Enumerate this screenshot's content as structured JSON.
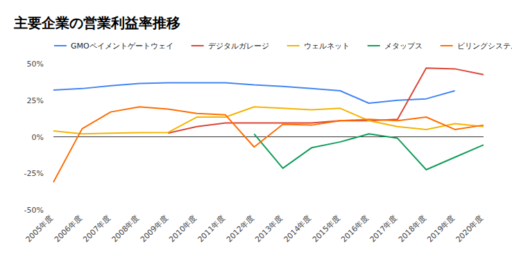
{
  "chart_data": {
    "type": "line",
    "title": "主要企業の営業利益率推移",
    "categories": [
      "2005年度",
      "2006年度",
      "2007年度",
      "2008年度",
      "2009年度",
      "2010年度",
      "2011年度",
      "2012年度",
      "2013年度",
      "2014年度",
      "2015年度",
      "2016年度",
      "2017年度",
      "2018年度",
      "2019年度",
      "2020年度"
    ],
    "series": [
      {
        "name": "GMOペイメントゲートウェイ",
        "color": "#4285F4",
        "values": [
          32,
          33,
          35,
          36.5,
          37,
          37,
          37,
          35.5,
          34.5,
          33,
          31.5,
          23,
          25,
          26,
          31.5,
          null
        ]
      },
      {
        "name": "デジタルガレージ",
        "color": "#DB4437",
        "values": [
          null,
          null,
          null,
          null,
          2.5,
          7,
          9.5,
          9.5,
          9.5,
          9.5,
          11,
          11,
          12,
          47,
          46.5,
          42.5
        ]
      },
      {
        "name": "ウェルネット",
        "color": "#F4B400",
        "values": [
          4,
          2,
          2.5,
          2.8,
          3,
          13.5,
          13.5,
          20.5,
          19.5,
          18.5,
          19.5,
          11,
          7,
          5,
          9,
          7
        ]
      },
      {
        "name": "メタップス",
        "color": "#0F9D58",
        "values": [
          null,
          null,
          null,
          null,
          null,
          null,
          null,
          2,
          -21.5,
          -7.5,
          -3.5,
          2,
          -1,
          -22.5,
          -14,
          -5.5
        ]
      },
      {
        "name": "ビリングシステム",
        "color": "#FF6D01",
        "values": [
          -31,
          5.5,
          17,
          20.5,
          19,
          16,
          15,
          -7,
          8.5,
          8,
          11,
          12,
          11,
          13.5,
          5,
          8
        ]
      }
    ],
    "ylim": [
      -50,
      50
    ],
    "yticks": [
      {
        "value": -50,
        "label": "-50%"
      },
      {
        "value": -25,
        "label": "-25%"
      },
      {
        "value": 0,
        "label": "0%"
      },
      {
        "value": 25,
        "label": "25%"
      },
      {
        "value": 50,
        "label": "50%"
      }
    ],
    "grid": false,
    "legend": "top"
  }
}
